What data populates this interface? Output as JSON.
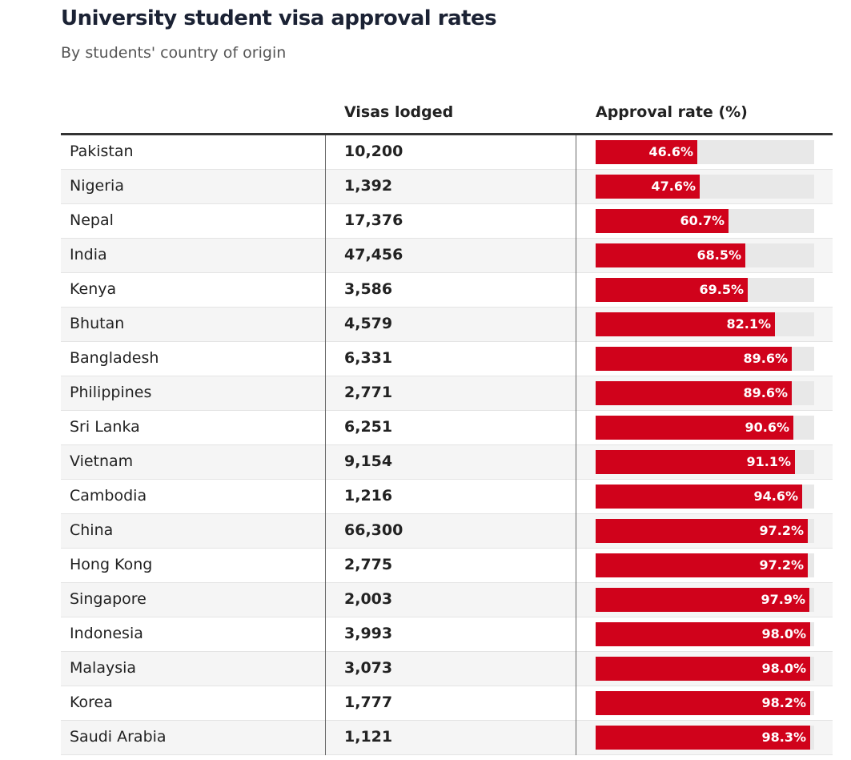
{
  "title": "University student visa approval rates",
  "subtitle": "By students' country of origin",
  "columns": {
    "country": "",
    "visas": "Visas lodged",
    "rate": "Approval rate (%)"
  },
  "colors": {
    "bar": "#d0021b",
    "track": "#e8e8e8",
    "title": "#1b2234"
  },
  "chart_data": {
    "type": "table",
    "title": "University student visa approval rates",
    "subtitle": "By students' country of origin",
    "columns": [
      "",
      "Visas lodged",
      "Approval rate (%)"
    ],
    "xlim": [
      0,
      100
    ],
    "rows": [
      {
        "country": "Pakistan",
        "visas": "10,200",
        "rate": 46.6,
        "rate_label": "46.6%"
      },
      {
        "country": "Nigeria",
        "visas": "1,392",
        "rate": 47.6,
        "rate_label": "47.6%"
      },
      {
        "country": "Nepal",
        "visas": "17,376",
        "rate": 60.7,
        "rate_label": "60.7%"
      },
      {
        "country": "India",
        "visas": "47,456",
        "rate": 68.5,
        "rate_label": "68.5%"
      },
      {
        "country": "Kenya",
        "visas": "3,586",
        "rate": 69.5,
        "rate_label": "69.5%"
      },
      {
        "country": "Bhutan",
        "visas": "4,579",
        "rate": 82.1,
        "rate_label": "82.1%"
      },
      {
        "country": "Bangladesh",
        "visas": "6,331",
        "rate": 89.6,
        "rate_label": "89.6%"
      },
      {
        "country": "Philippines",
        "visas": "2,771",
        "rate": 89.6,
        "rate_label": "89.6%"
      },
      {
        "country": "Sri Lanka",
        "visas": "6,251",
        "rate": 90.6,
        "rate_label": "90.6%"
      },
      {
        "country": "Vietnam",
        "visas": "9,154",
        "rate": 91.1,
        "rate_label": "91.1%"
      },
      {
        "country": "Cambodia",
        "visas": "1,216",
        "rate": 94.6,
        "rate_label": "94.6%"
      },
      {
        "country": "China",
        "visas": "66,300",
        "rate": 97.2,
        "rate_label": "97.2%"
      },
      {
        "country": "Hong Kong",
        "visas": "2,775",
        "rate": 97.2,
        "rate_label": "97.2%"
      },
      {
        "country": "Singapore",
        "visas": "2,003",
        "rate": 97.9,
        "rate_label": "97.9%"
      },
      {
        "country": "Indonesia",
        "visas": "3,993",
        "rate": 98.0,
        "rate_label": "98.0%"
      },
      {
        "country": "Malaysia",
        "visas": "3,073",
        "rate": 98.0,
        "rate_label": "98.0%"
      },
      {
        "country": "Korea",
        "visas": "1,777",
        "rate": 98.2,
        "rate_label": "98.2%"
      },
      {
        "country": "Saudi Arabia",
        "visas": "1,121",
        "rate": 98.3,
        "rate_label": "98.3%"
      }
    ]
  }
}
